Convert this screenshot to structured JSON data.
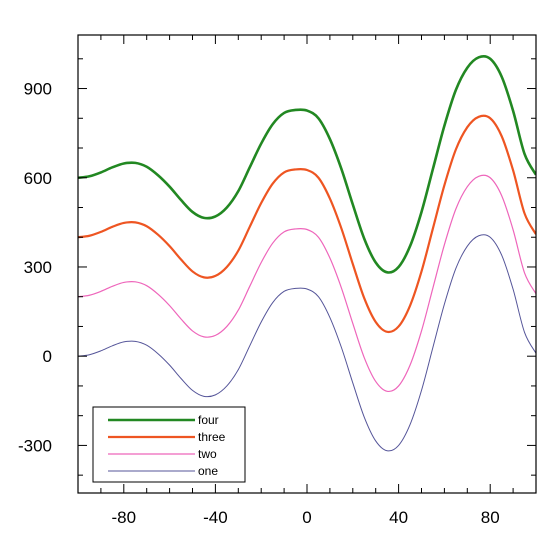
{
  "chart_data": {
    "type": "line",
    "title": "",
    "xlabel": "",
    "ylabel": "",
    "xlim": [
      -100,
      100
    ],
    "ylim": [
      -460,
      1080
    ],
    "xticks": [
      -80,
      -40,
      0,
      40,
      80
    ],
    "yticks": [
      -300,
      0,
      300,
      600,
      900
    ],
    "xtick_labels": [
      "-80",
      "-40",
      "0",
      "40",
      "80"
    ],
    "ytick_labels": [
      "-300",
      "0",
      "300",
      "600",
      "900"
    ],
    "grid": false,
    "legend_position": "bottom-left",
    "x": [
      -100,
      -95,
      -90,
      -85,
      -80,
      -75,
      -70,
      -65,
      -60,
      -55,
      -50,
      -45,
      -40,
      -35,
      -30,
      -25,
      -20,
      -15,
      -10,
      -5,
      0,
      5,
      10,
      15,
      20,
      25,
      30,
      35,
      40,
      45,
      50,
      55,
      60,
      65,
      70,
      75,
      80,
      85,
      90,
      95,
      100
    ],
    "series": [
      {
        "name": "one",
        "color": "#555599",
        "values": [
          0,
          5,
          18,
          35,
          48,
          50,
          37,
          8,
          -30,
          -75,
          -115,
          -135,
          -130,
          -100,
          -45,
          35,
          115,
          180,
          218,
          228,
          226,
          200,
          130,
          30,
          -90,
          -205,
          -285,
          -318,
          -300,
          -230,
          -115,
          30,
          175,
          295,
          370,
          405,
          400,
          340,
          225,
          80,
          10
        ]
      },
      {
        "name": "two",
        "color": "#ee66bb",
        "values": [
          200,
          205,
          218,
          235,
          248,
          250,
          237,
          208,
          170,
          125,
          85,
          65,
          70,
          100,
          155,
          235,
          315,
          380,
          418,
          428,
          426,
          400,
          330,
          230,
          110,
          -5,
          -85,
          -118,
          -100,
          -30,
          85,
          230,
          375,
          495,
          570,
          605,
          600,
          540,
          425,
          280,
          210
        ]
      },
      {
        "name": "three",
        "color": "#ee5522",
        "values": [
          400,
          405,
          418,
          435,
          448,
          450,
          437,
          408,
          370,
          325,
          285,
          265,
          270,
          300,
          355,
          435,
          515,
          580,
          618,
          628,
          626,
          600,
          530,
          430,
          310,
          195,
          115,
          82,
          100,
          170,
          285,
          430,
          575,
          695,
          770,
          805,
          800,
          740,
          625,
          480,
          410
        ]
      },
      {
        "name": "four",
        "color": "#228822",
        "values": [
          600,
          605,
          618,
          635,
          648,
          650,
          637,
          608,
          570,
          525,
          485,
          465,
          470,
          500,
          555,
          635,
          715,
          780,
          818,
          828,
          826,
          800,
          730,
          630,
          510,
          395,
          315,
          282,
          300,
          370,
          485,
          630,
          775,
          895,
          970,
          1005,
          1000,
          940,
          825,
          680,
          610
        ]
      }
    ],
    "legend_order": [
      "four",
      "three",
      "two",
      "one"
    ]
  }
}
